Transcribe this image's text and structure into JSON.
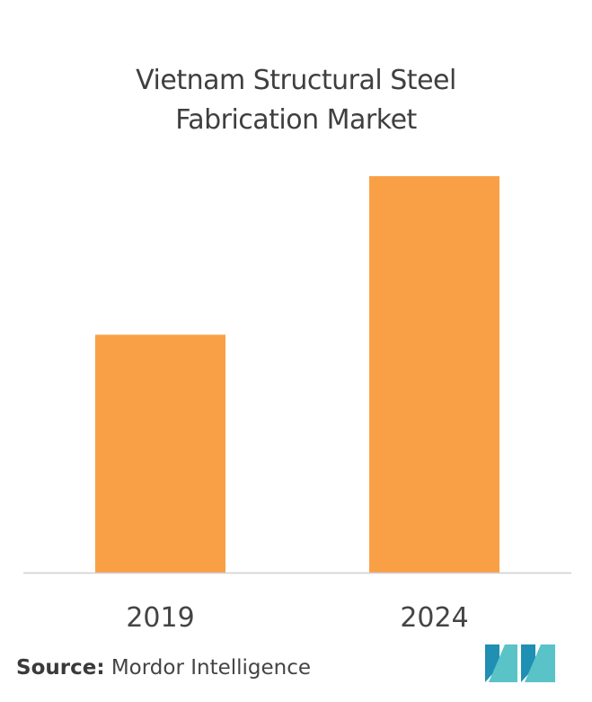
{
  "chart_data": {
    "type": "bar",
    "title": "Vietnam Structural Steel Fabrication Market",
    "title_lines": [
      "Vietnam Structural Steel",
      "Fabrication Market"
    ],
    "categories": [
      "2019",
      "2024"
    ],
    "values": [
      60,
      100
    ],
    "ylim": [
      0,
      100
    ],
    "xlabel": "",
    "ylabel": "",
    "grid": false,
    "legend": "none",
    "bar_color": "#f9a046",
    "axis_color": "#cfcfcf"
  },
  "source": {
    "label": "Source:",
    "text": "Mordor Intelligence"
  },
  "logo": {
    "icon": "mordor-intelligence-logo-icon",
    "colors": [
      "#1f8fb3",
      "#5ac3c8"
    ]
  }
}
